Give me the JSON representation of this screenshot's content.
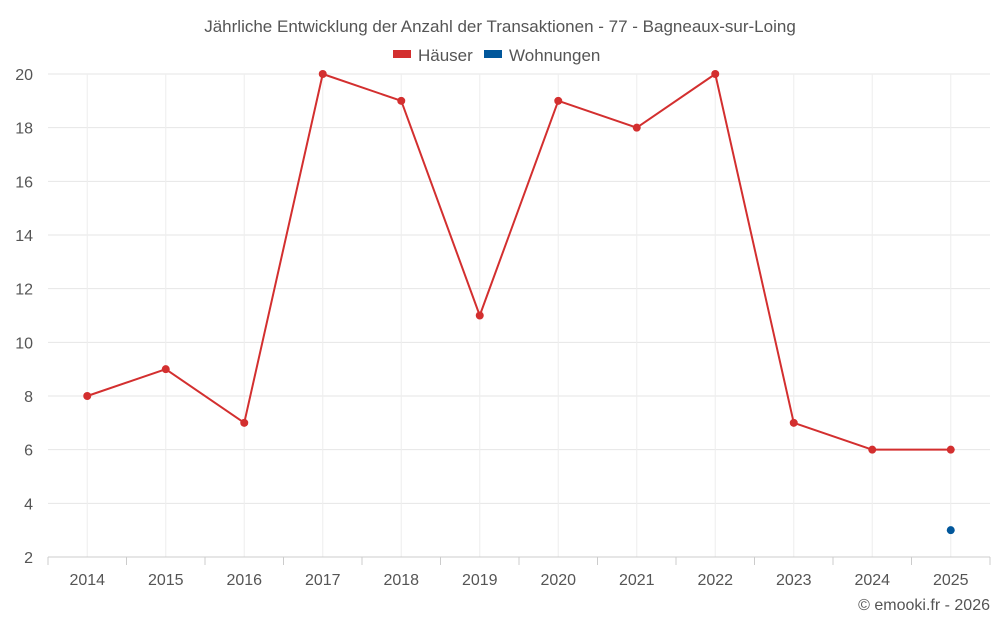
{
  "chart_data": {
    "type": "line",
    "title": "Jährliche Entwicklung der Anzahl der Transaktionen - 77 - Bagneaux-sur-Loing",
    "categories": [
      "2014",
      "2015",
      "2016",
      "2017",
      "2018",
      "2019",
      "2020",
      "2021",
      "2022",
      "2023",
      "2024",
      "2025"
    ],
    "series": [
      {
        "name": "Häuser",
        "color": "#d32f2f",
        "values": [
          8,
          9,
          7,
          20,
          19,
          11,
          19,
          18,
          20,
          7,
          6,
          6
        ]
      },
      {
        "name": "Wohnungen",
        "color": "#01579b",
        "values": [
          null,
          null,
          null,
          null,
          null,
          null,
          null,
          null,
          null,
          null,
          null,
          3
        ]
      }
    ],
    "y_ticks": [
      "2",
      "4",
      "6",
      "8",
      "10",
      "12",
      "14",
      "16",
      "18",
      "20"
    ],
    "ylim": [
      2,
      20
    ],
    "xlabel": "",
    "ylabel": "",
    "grid": true,
    "legend_position": "top-center",
    "credit": "© emooki.fr - 2026"
  }
}
